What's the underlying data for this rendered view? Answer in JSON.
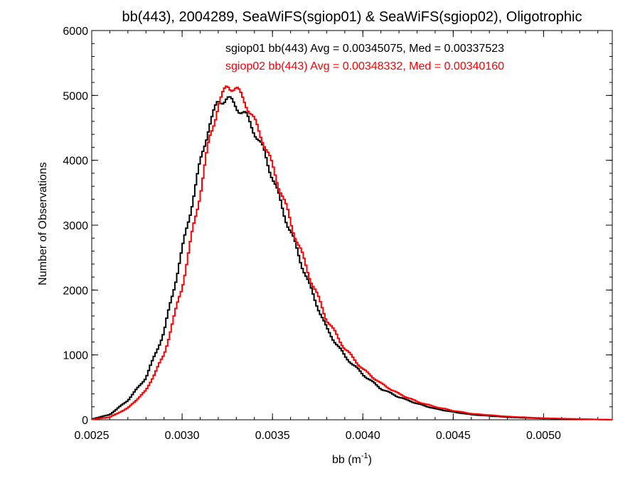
{
  "chart_data": {
    "type": "line",
    "step": true,
    "title": "bb(443), 2004289, SeaWiFS(sgiop01) & SeaWiFS(sgiop02), Oligotrophic",
    "xlabel_main": "bb (m",
    "xlabel_sup": "-1",
    "xlabel_close": ")",
    "ylabel": "Number of Observations",
    "xlim": [
      0.0025,
      0.00538
    ],
    "ylim": [
      0,
      6000
    ],
    "x_ticks": [
      0.0025,
      0.003,
      0.0035,
      0.004,
      0.0045,
      0.005
    ],
    "x_tick_labels": [
      "0.0025",
      "0.0030",
      "0.0035",
      "0.0040",
      "0.0045",
      "0.0050"
    ],
    "y_ticks": [
      0,
      1000,
      2000,
      3000,
      4000,
      5000,
      6000
    ],
    "y_tick_labels": [
      "0",
      "1000",
      "2000",
      "3000",
      "4000",
      "5000",
      "6000"
    ],
    "annotations": [
      {
        "text": "sgiop01 bb(443) Avg = 0.00345075, Med = 0.00337523",
        "color": "#000000"
      },
      {
        "text": "sgiop02 bb(443) Avg = 0.00348332, Med = 0.00340160",
        "color": "#ff0000"
      }
    ],
    "series": [
      {
        "color": "#000000",
        "x": [
          0.0025,
          0.0026,
          0.0027,
          0.0028,
          0.0029,
          0.003,
          0.0031,
          0.00315,
          0.0032,
          0.00325,
          0.0033,
          0.00335,
          0.0034,
          0.00345,
          0.0035,
          0.00355,
          0.0036,
          0.00365,
          0.0037,
          0.00375,
          0.0038,
          0.0039,
          0.004,
          0.0041,
          0.0042,
          0.0043,
          0.0044,
          0.0045,
          0.0046,
          0.0048,
          0.005,
          0.0052,
          0.00538
        ],
        "y": [
          10,
          80,
          300,
          650,
          1350,
          2600,
          3950,
          4550,
          4900,
          4960,
          4830,
          4700,
          4450,
          4150,
          3750,
          3300,
          2900,
          2500,
          2100,
          1750,
          1400,
          980,
          700,
          480,
          350,
          250,
          170,
          120,
          80,
          40,
          20,
          10,
          0
        ]
      },
      {
        "color": "#ff0000",
        "x": [
          0.0025,
          0.0026,
          0.0027,
          0.0028,
          0.0029,
          0.003,
          0.0031,
          0.00315,
          0.0032,
          0.00325,
          0.0033,
          0.00335,
          0.0034,
          0.00345,
          0.0035,
          0.00355,
          0.0036,
          0.00365,
          0.0037,
          0.00375,
          0.0038,
          0.0039,
          0.004,
          0.0041,
          0.0042,
          0.0043,
          0.0044,
          0.0045,
          0.0046,
          0.0048,
          0.005,
          0.0052,
          0.00538
        ],
        "y": [
          5,
          40,
          180,
          450,
          1000,
          2050,
          3500,
          4300,
          4850,
          5150,
          5100,
          4900,
          4600,
          4300,
          3900,
          3500,
          3050,
          2650,
          2250,
          1900,
          1550,
          1100,
          780,
          560,
          400,
          280,
          200,
          140,
          95,
          50,
          25,
          12,
          0
        ]
      }
    ]
  }
}
